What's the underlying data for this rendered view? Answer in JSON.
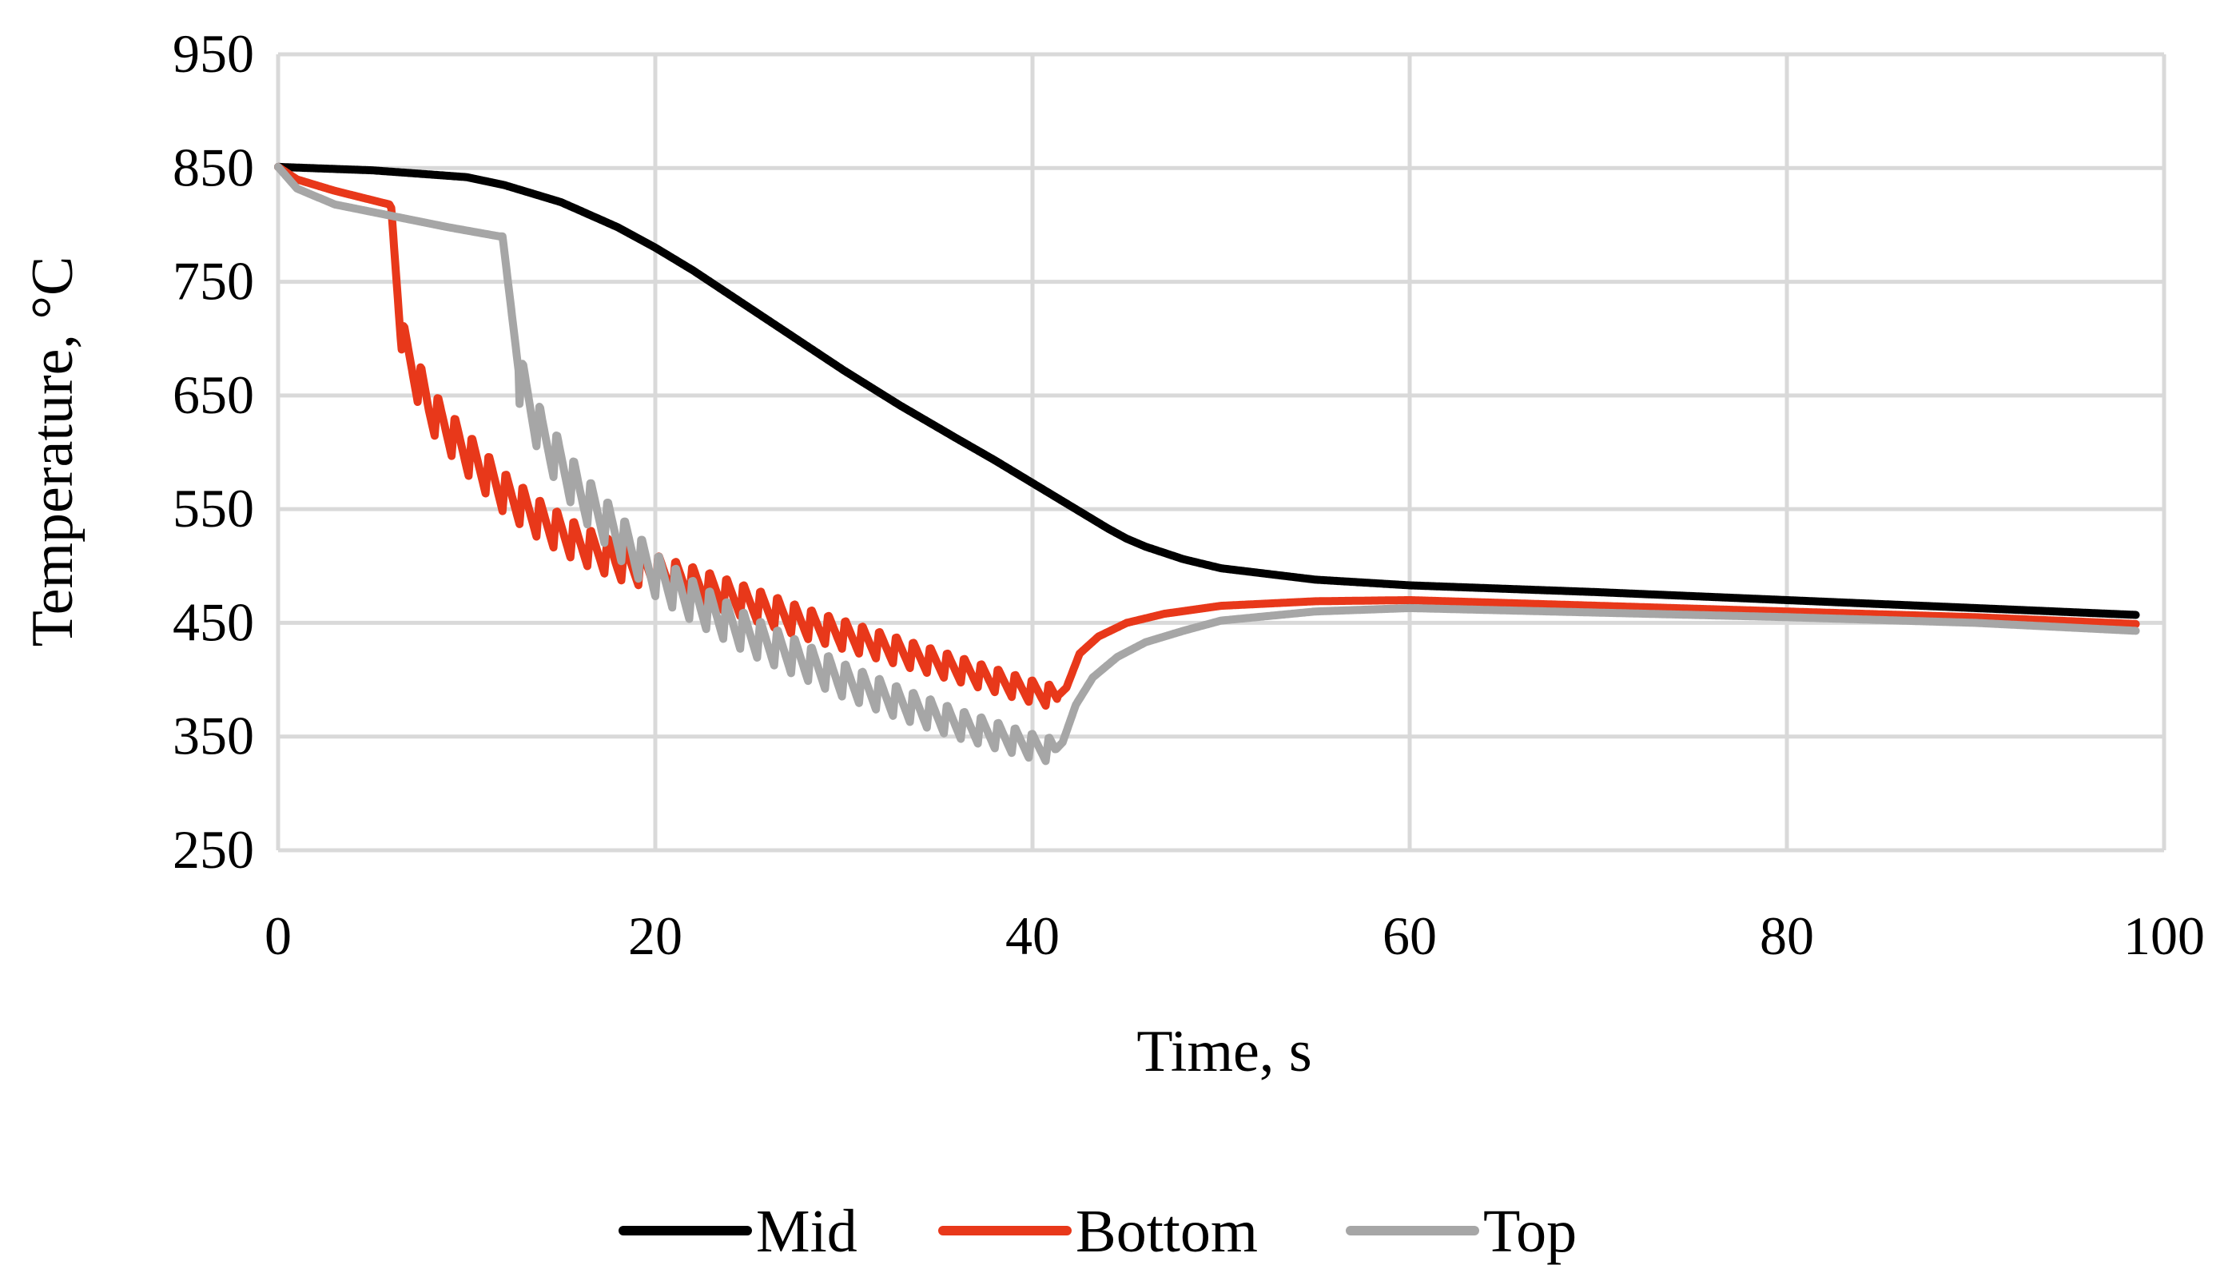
{
  "chart_data": {
    "type": "line",
    "title": "",
    "xlabel": "Time, s",
    "ylabel": "Temperature, °C",
    "xlim": [
      0,
      100
    ],
    "ylim": [
      250,
      950
    ],
    "x_ticks": [
      0,
      20,
      40,
      60,
      80,
      100
    ],
    "y_ticks": [
      250,
      350,
      450,
      550,
      650,
      750,
      850,
      950
    ],
    "grid": true,
    "legend_position": "bottom",
    "series": [
      {
        "name": "Mid",
        "color": "#000000",
        "x": [
          0,
          5,
          10,
          12,
          15,
          18,
          20,
          22,
          25,
          28,
          30,
          33,
          36,
          38,
          40,
          42,
          44,
          45,
          46,
          48,
          50,
          55,
          60,
          70,
          80,
          90,
          98.5
        ],
        "y": [
          851,
          848,
          842,
          835,
          820,
          798,
          780,
          760,
          727,
          694,
          672,
          641,
          612,
          593,
          573,
          553,
          533,
          524,
          517,
          506,
          498,
          488,
          483,
          477,
          470,
          463,
          457
        ]
      },
      {
        "name": "Bottom",
        "color": "#e8381a",
        "x": [
          0,
          1,
          3,
          5.9,
          6.0,
          6.5,
          8,
          10,
          12,
          14,
          16,
          18,
          20,
          22,
          25,
          28,
          30,
          33,
          36,
          38,
          40,
          41.3,
          41.8,
          42.5,
          43.5,
          45,
          47,
          50,
          55,
          60,
          70,
          80,
          90,
          98.5
        ],
        "y": [
          851,
          840,
          830,
          818,
          815,
          700,
          640,
          600,
          565,
          540,
          520,
          505,
          495,
          485,
          468,
          450,
          440,
          425,
          410,
          400,
          390,
          385,
          393,
          423,
          438,
          450,
          458,
          465,
          469,
          470,
          465,
          460,
          455,
          449
        ],
        "oscillation": {
          "start": 6.5,
          "end": 41.3,
          "period": 0.9,
          "amplitude_start": 40,
          "amplitude_end": 20
        }
      },
      {
        "name": "Top",
        "color": "#a6a6a6",
        "x": [
          0,
          1,
          3,
          6,
          9,
          11.7,
          11.9,
          12.8,
          14,
          16,
          18,
          20,
          22,
          25,
          28,
          30,
          33,
          36,
          38,
          40,
          41.2,
          41.6,
          42.3,
          43.2,
          44.5,
          46,
          48,
          50,
          55,
          60,
          70,
          80,
          90,
          98.5
        ],
        "y": [
          851,
          832,
          818,
          808,
          798,
          790,
          790,
          665,
          615,
          565,
          528,
          493,
          470,
          440,
          416,
          400,
          380,
          362,
          352,
          342,
          338,
          345,
          378,
          402,
          420,
          433,
          443,
          452,
          460,
          463,
          459,
          455,
          450,
          443
        ],
        "oscillation": {
          "start": 12.8,
          "end": 41.2,
          "period": 0.9,
          "amplitude_start": 45,
          "amplitude_end": 22
        }
      }
    ]
  }
}
